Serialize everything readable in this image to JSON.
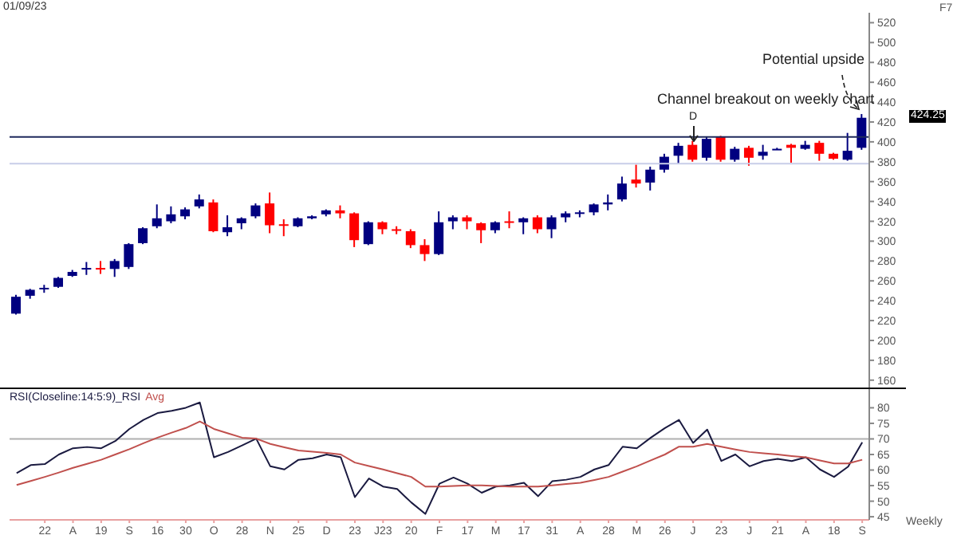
{
  "chart_data": [
    {
      "type": "candlestick",
      "title": "01/09/23",
      "tick_labels": "y",
      "categories": [
        null,
        null,
        null,
        null,
        null,
        null,
        null,
        null,
        null,
        null,
        null,
        null,
        null,
        null,
        null,
        null,
        null,
        null,
        null,
        null,
        null,
        null,
        null,
        null,
        null,
        null,
        null,
        null,
        null,
        null,
        null,
        null,
        null,
        null,
        null,
        null,
        null,
        null,
        null,
        null,
        null,
        null,
        null,
        null,
        null,
        null,
        null,
        null,
        null,
        null,
        null,
        null,
        null,
        null,
        null,
        null,
        null,
        null,
        null,
        null,
        null
      ],
      "ohlc": [
        [
          227,
          246,
          226,
          244
        ],
        [
          245,
          252,
          242,
          251
        ],
        [
          252,
          256,
          248,
          253
        ],
        [
          254,
          264,
          253,
          263
        ],
        [
          265,
          271,
          264,
          269
        ],
        [
          272,
          279,
          266,
          273
        ],
        [
          273,
          280,
          267,
          272
        ],
        [
          272,
          282,
          264,
          280
        ],
        [
          274,
          298,
          272,
          297
        ],
        [
          298,
          314,
          297,
          313
        ],
        [
          315,
          337,
          313,
          323
        ],
        [
          320,
          335,
          318,
          327
        ],
        [
          325,
          334,
          322,
          332
        ],
        [
          335,
          347,
          333,
          342
        ],
        [
          339,
          342,
          309,
          310
        ],
        [
          309,
          326,
          305,
          314
        ],
        [
          318,
          324,
          312,
          323
        ],
        [
          325,
          338,
          323,
          336
        ],
        [
          338,
          349,
          308,
          316
        ],
        [
          317,
          322,
          305,
          316
        ],
        [
          315,
          324,
          314,
          323
        ],
        [
          323,
          326,
          322,
          325
        ],
        [
          327,
          332,
          325,
          331
        ],
        [
          331,
          336,
          323,
          328
        ],
        [
          328,
          329,
          294,
          301
        ],
        [
          297,
          320,
          296,
          319
        ],
        [
          319,
          320,
          307,
          312
        ],
        [
          312,
          315,
          307,
          311
        ],
        [
          310,
          312,
          293,
          296
        ],
        [
          296,
          302,
          280,
          287
        ],
        [
          287,
          330,
          286,
          319
        ],
        [
          320,
          326,
          312,
          324
        ],
        [
          324,
          326,
          312,
          320
        ],
        [
          318,
          319,
          298,
          311
        ],
        [
          311,
          320,
          308,
          319
        ],
        [
          320,
          330,
          313,
          319
        ],
        [
          319,
          324,
          307,
          323
        ],
        [
          324,
          326,
          308,
          312
        ],
        [
          312,
          326,
          303,
          324
        ],
        [
          324,
          330,
          319,
          328
        ],
        [
          328,
          331,
          324,
          329
        ],
        [
          329,
          338,
          326,
          337
        ],
        [
          337,
          347,
          331,
          339
        ],
        [
          342,
          365,
          340,
          358
        ],
        [
          362,
          377,
          354,
          358
        ],
        [
          359,
          375,
          351,
          372
        ],
        [
          372,
          388,
          369,
          385
        ],
        [
          386,
          399,
          378,
          396
        ],
        [
          397,
          401,
          380,
          382
        ],
        [
          384,
          405,
          381,
          403
        ],
        [
          405,
          406,
          380,
          382
        ],
        [
          382,
          395,
          380,
          393
        ],
        [
          394,
          396,
          376,
          384
        ],
        [
          386,
          397,
          382,
          390
        ],
        [
          392,
          394,
          392,
          393
        ],
        [
          397,
          398,
          379,
          394
        ],
        [
          393,
          401,
          392,
          397
        ],
        [
          399,
          401,
          381,
          388
        ],
        [
          388,
          389,
          382,
          383
        ],
        [
          382,
          409,
          381,
          391
        ],
        [
          394,
          428,
          392,
          424.25
        ]
      ],
      "colors": [
        "#000080",
        "#000080",
        "#000080",
        "#000080",
        "#000080",
        "#000080",
        "#ff0000",
        "#000080",
        "#000080",
        "#000080",
        "#000080",
        "#000080",
        "#000080",
        "#000080",
        "#ff0000",
        "#000080",
        "#000080",
        "#000080",
        "#ff0000",
        "#ff0000",
        "#000080",
        "#000080",
        "#000080",
        "#ff0000",
        "#ff0000",
        "#000080",
        "#ff0000",
        "#ff0000",
        "#ff0000",
        "#ff0000",
        "#000080",
        "#000080",
        "#ff0000",
        "#ff0000",
        "#000080",
        "#ff0000",
        "#000080",
        "#ff0000",
        "#000080",
        "#000080",
        "#000080",
        "#000080",
        "#000080",
        "#000080",
        "#ff0000",
        "#000080",
        "#000080",
        "#000080",
        "#ff0000",
        "#000080",
        "#ff0000",
        "#000080",
        "#ff0000",
        "#000080",
        "#000080",
        "#ff0000",
        "#000080",
        "#ff0000",
        "#ff0000",
        "#000080",
        "#000080"
      ],
      "ylim": [
        151,
        530
      ],
      "yticks": [
        160,
        180,
        200,
        220,
        240,
        260,
        280,
        300,
        320,
        340,
        360,
        380,
        400,
        420,
        440,
        460,
        480,
        500,
        520
      ],
      "ref_lines": [
        {
          "axis": "y",
          "value": 405,
          "color": "#1f2a5c"
        },
        {
          "axis": "y",
          "value": 378,
          "color": "#c8cde8"
        }
      ],
      "annotations": [
        "Channel breakout on weekly chart",
        "Potential upside",
        "D",
        "424.25",
        "F7"
      ]
    },
    {
      "type": "line",
      "marker": "none",
      "legend": "top left",
      "categories": [
        null,
        null,
        "22",
        null,
        "A",
        null,
        "19",
        null,
        "S",
        null,
        "16",
        null,
        "30",
        null,
        "O",
        null,
        "28",
        null,
        "N",
        null,
        "25",
        null,
        "D",
        null,
        "23",
        null,
        "J23",
        null,
        "20",
        null,
        "F",
        null,
        "17",
        null,
        "M",
        null,
        "17",
        null,
        "31",
        null,
        "A",
        null,
        "28",
        null,
        "M",
        null,
        "26",
        null,
        "J",
        null,
        "23",
        null,
        "J",
        null,
        "21",
        null,
        "A",
        null,
        "18",
        null,
        "S"
      ],
      "series": [
        {
          "name": "RSI(Closeline:14:5:9)_RSI",
          "color": "#1a1a40",
          "values": [
            59.0,
            61.6,
            61.9,
            65.0,
            67.0,
            67.4,
            67.0,
            69.3,
            73.2,
            76.1,
            78.3,
            79.0,
            80.0,
            81.7,
            64.1,
            65.8,
            67.9,
            70.1,
            61.2,
            60.2,
            63.3,
            63.8,
            65.0,
            64.1,
            51.3,
            57.3,
            54.7,
            53.9,
            49.6,
            45.9,
            55.6,
            57.6,
            55.6,
            52.7,
            54.7,
            55.1,
            55.9,
            51.6,
            56.4,
            56.9,
            57.8,
            60.2,
            61.6,
            67.5,
            67.0,
            70.4,
            73.5,
            76.1,
            68.7,
            73.0,
            62.9,
            65.0,
            61.2,
            62.9,
            63.6,
            62.9,
            64.1,
            60.2,
            57.8,
            61.1,
            68.9
          ]
        },
        {
          "name": "Avg",
          "color": "#c0504d",
          "values": [
            55.2,
            56.5,
            57.8,
            59.2,
            60.7,
            62.0,
            63.3,
            65.0,
            66.7,
            68.6,
            70.4,
            72.0,
            73.5,
            75.6,
            73.2,
            71.8,
            70.4,
            70.1,
            68.4,
            67.3,
            66.3,
            65.9,
            65.5,
            65.0,
            62.4,
            61.3,
            60.2,
            59.0,
            57.8,
            54.7,
            54.7,
            54.9,
            55.1,
            55.1,
            54.9,
            54.7,
            54.7,
            54.7,
            55.1,
            55.5,
            55.9,
            56.8,
            57.8,
            59.5,
            61.2,
            63.1,
            65.0,
            67.5,
            67.5,
            68.4,
            67.5,
            66.6,
            65.8,
            65.4,
            65.0,
            64.5,
            64.1,
            63.1,
            62.1,
            62.1,
            63.3
          ]
        }
      ],
      "ylim": [
        44,
        86
      ],
      "yticks": [
        45,
        50,
        55,
        60,
        65,
        70,
        75,
        80
      ],
      "ref_lines": [
        {
          "axis": "y",
          "value": 70,
          "color": "#b0b0b0"
        }
      ],
      "annotations": [
        "Weekly"
      ]
    }
  ]
}
